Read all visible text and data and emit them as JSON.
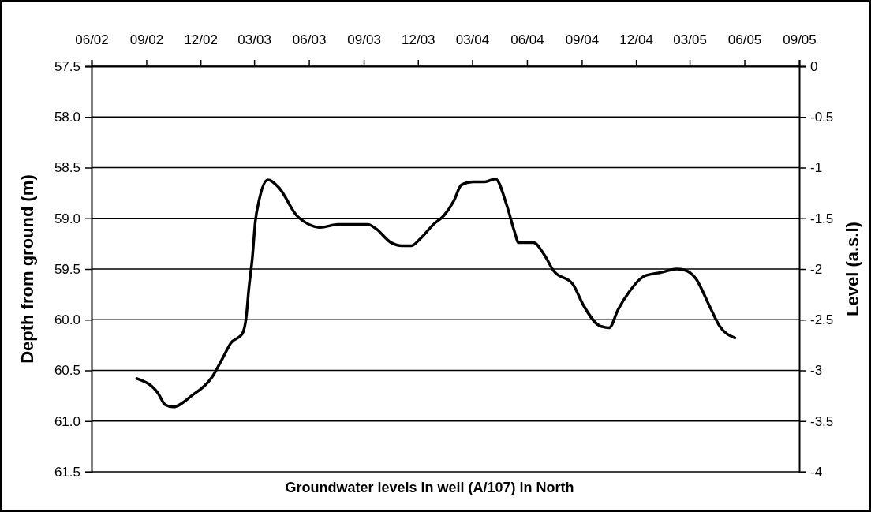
{
  "chart_data": {
    "type": "line",
    "title": "Groundwater levels in well (A/107) in North",
    "ylabel": "Depth from ground (m)",
    "y2label": "Level (a.s.l)",
    "xlim": [
      "2002-06",
      "2005-09"
    ],
    "xticks": [
      {
        "value": "2002-06",
        "label": "06/02"
      },
      {
        "value": "2002-09",
        "label": "09/02"
      },
      {
        "value": "2002-12",
        "label": "12/02"
      },
      {
        "value": "2003-03",
        "label": "03/03"
      },
      {
        "value": "2003-06",
        "label": "06/03"
      },
      {
        "value": "2003-09",
        "label": "09/03"
      },
      {
        "value": "2003-12",
        "label": "12/03"
      },
      {
        "value": "2004-03",
        "label": "03/04"
      },
      {
        "value": "2004-06",
        "label": "06/04"
      },
      {
        "value": "2004-09",
        "label": "09/04"
      },
      {
        "value": "2004-12",
        "label": "12/04"
      },
      {
        "value": "2005-03",
        "label": "03/05"
      },
      {
        "value": "2005-06",
        "label": "06/05"
      },
      {
        "value": "2005-09",
        "label": "09/05"
      }
    ],
    "ylim": [
      61.5,
      57.5
    ],
    "yticks": [
      57.5,
      {
        "value": 58,
        "label": "58.0"
      },
      58.5,
      {
        "value": 59,
        "label": "59.0"
      },
      59.5,
      {
        "value": 60,
        "label": "60.0"
      },
      60.5,
      {
        "value": 61,
        "label": "61.0"
      },
      61.5
    ],
    "y2lim": [
      -4,
      0
    ],
    "y2ticks": [
      0,
      -0.5,
      -1,
      -1.5,
      -2,
      -2.5,
      -3,
      -3.5,
      -4
    ],
    "grid": "y",
    "x": [
      "2002-08-16",
      "2002-09-20",
      "2002-10-03",
      "2002-10-16",
      "2002-11-16",
      "2002-12-21",
      "2003-01-08",
      "2003-01-21",
      "2003-02-09",
      "2003-02-16",
      "2003-02-20",
      "2003-02-26",
      "2003-03-03",
      "2003-03-09",
      "2003-03-24",
      "2003-04-12",
      "2003-05-11",
      "2003-06-01",
      "2003-06-20",
      "2003-07-20",
      "2003-09-08",
      "2003-09-21",
      "2003-10-17",
      "2003-11-04",
      "2003-11-20",
      "2003-12-05",
      "2003-12-27",
      "2004-01-14",
      "2004-01-30",
      "2004-02-12",
      "2004-03-02",
      "2004-03-22",
      "2004-04-09",
      "2004-04-28",
      "2004-05-11",
      "2004-05-18",
      "2004-06-12",
      "2004-06-30",
      "2004-07-16",
      "2004-08-17",
      "2004-09-04",
      "2004-10-01",
      "2004-10-17",
      "2004-11-01",
      "2004-11-19",
      "2004-12-15",
      "2005-01-06",
      "2005-01-15",
      "2005-02-07",
      "2005-02-20",
      "2005-03-11",
      "2005-04-03",
      "2005-04-20",
      "2005-05-16"
    ],
    "series": [
      {
        "color": "#000000",
        "values": [
          60.58,
          60.72,
          60.84,
          60.86,
          60.75,
          60.56,
          60.37,
          60.23,
          60.14,
          59.96,
          59.7,
          59.39,
          59.03,
          58.83,
          58.62,
          58.7,
          58.97,
          59.06,
          59.09,
          59.06,
          59.06,
          59.1,
          59.24,
          59.27,
          59.27,
          59.2,
          59.06,
          58.97,
          58.83,
          58.67,
          58.64,
          58.64,
          58.61,
          58.87,
          59.13,
          59.24,
          59.24,
          59.36,
          59.52,
          59.65,
          59.86,
          60.06,
          60.08,
          59.9,
          59.73,
          59.57,
          59.54,
          59.53,
          59.5,
          59.51,
          59.59,
          59.86,
          60.06,
          60.18
        ]
      }
    ]
  }
}
